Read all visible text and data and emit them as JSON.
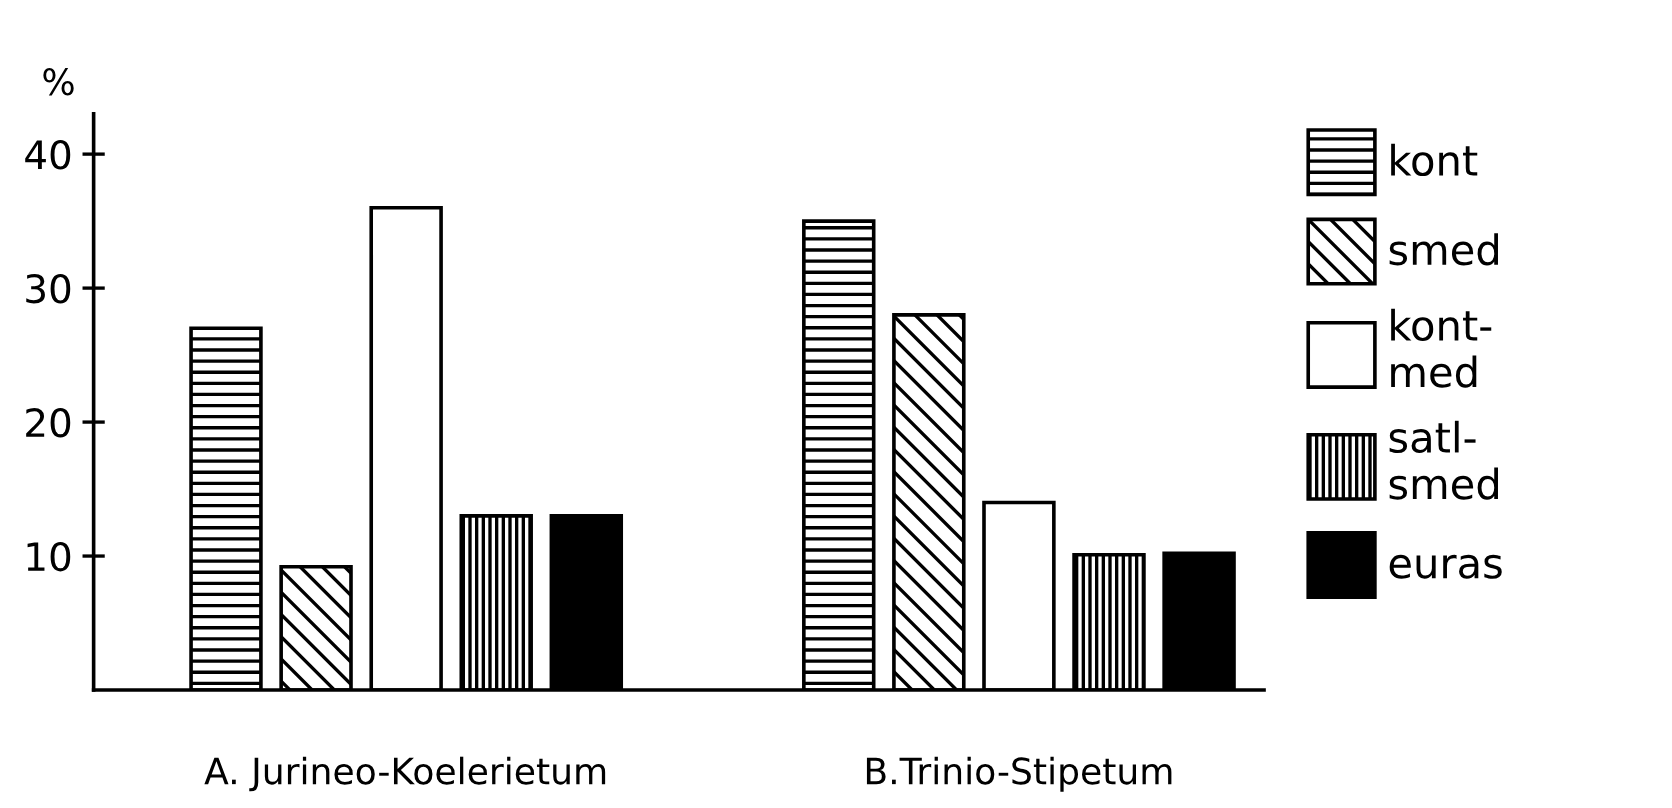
{
  "chart_data": {
    "type": "bar",
    "ylabel": "%",
    "categories": [
      "A. Jurineo-Koelerietum",
      "B.Trinio-Stipetum"
    ],
    "series": [
      {
        "name": "kont",
        "color": "#000000",
        "values": [
          27,
          35
        ]
      },
      {
        "name": "smed",
        "color": "#000000",
        "values": [
          9.2,
          28
        ]
      },
      {
        "name": "kont-\nmed",
        "color": "#ffffff",
        "values": [
          36,
          14
        ]
      },
      {
        "name": "satl-\nsmed",
        "color": "#000000",
        "values": [
          13,
          10.1
        ]
      },
      {
        "name": "euras",
        "color": "#000000",
        "values": [
          13,
          10.2
        ]
      }
    ],
    "ylim": [
      0,
      43
    ],
    "yticks": [
      10,
      20,
      30,
      40
    ],
    "grid": false,
    "legend": "right"
  }
}
